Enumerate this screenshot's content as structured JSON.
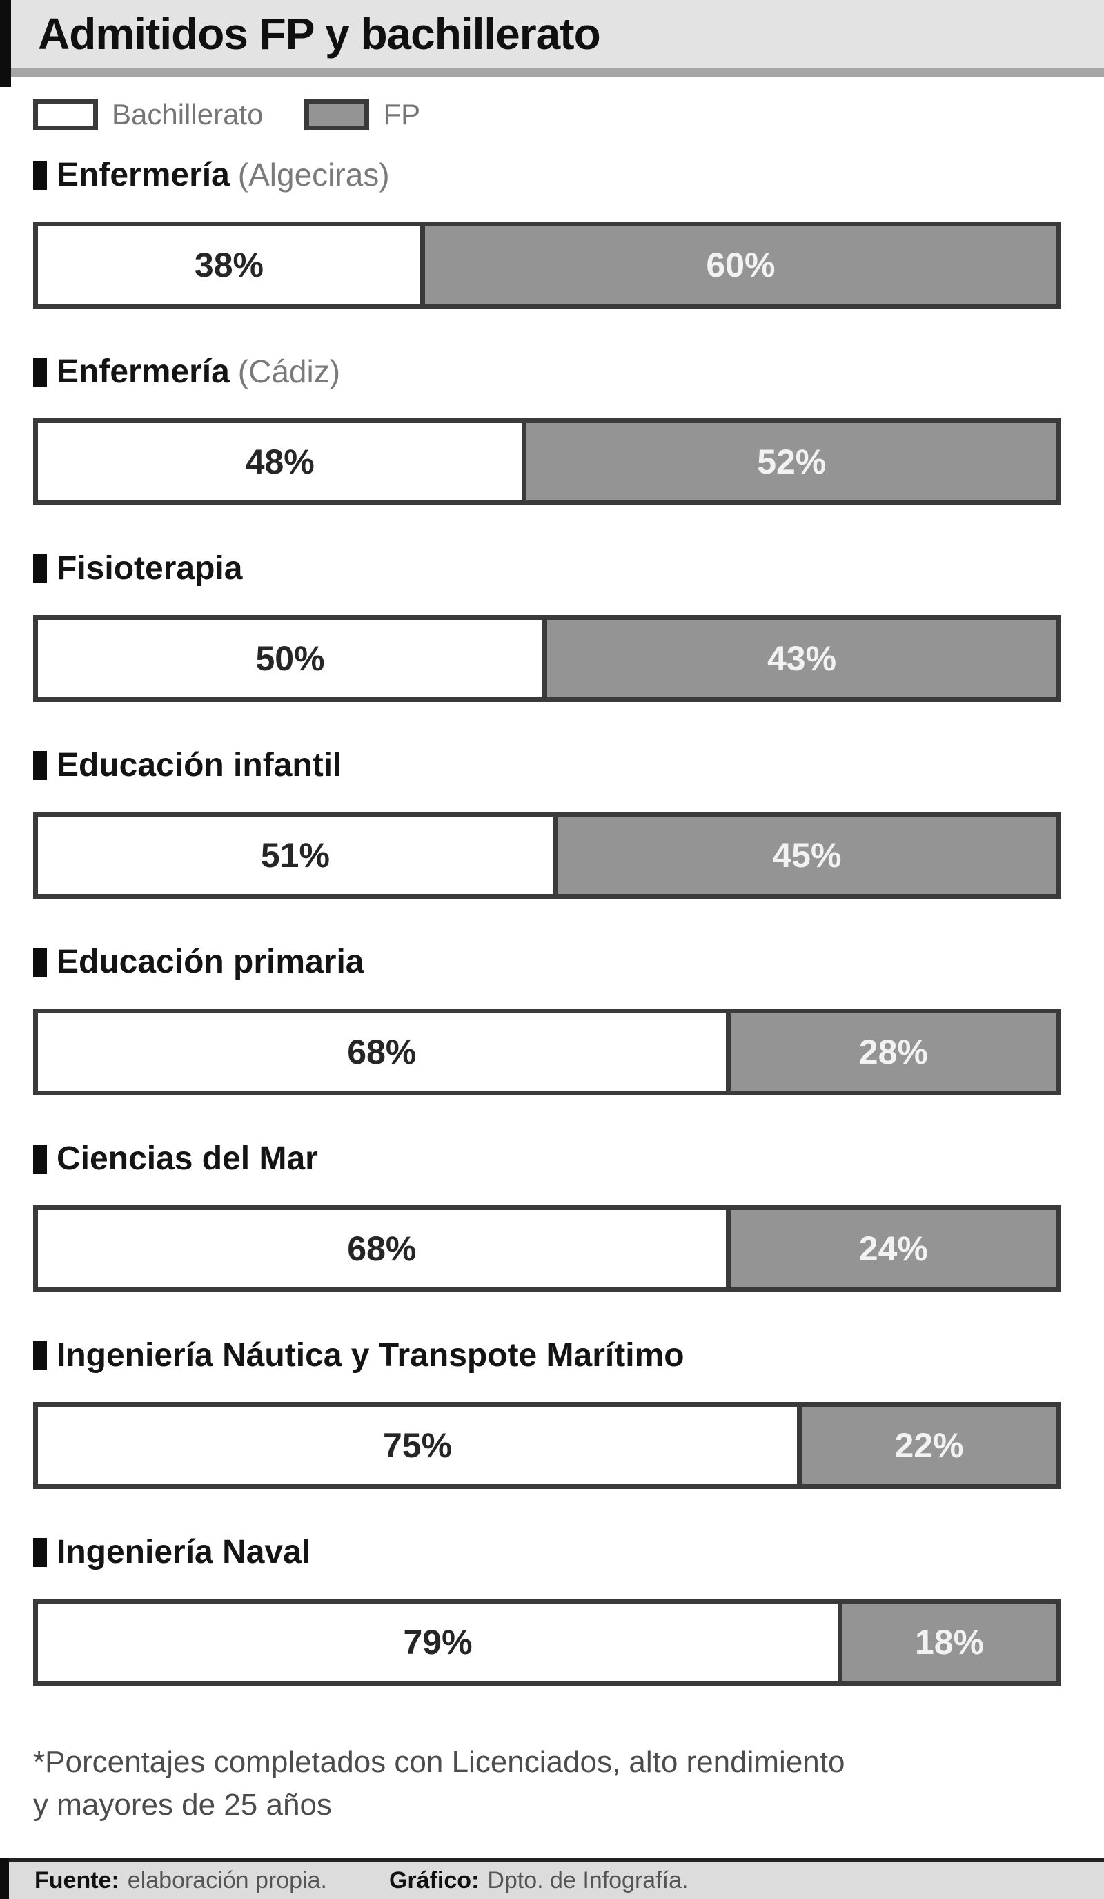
{
  "header": {
    "title": "Admitidos FP y bachillerato"
  },
  "legend": {
    "bachillerato_label": "Bachillerato",
    "fp_label": "FP"
  },
  "colors": {
    "fp_fill": "#949494",
    "bachillerato_fill": "#ffffff",
    "bar_border": "#3a3a3a",
    "header_bg": "#e3e3e3",
    "footer_bg": "#dcdcdc",
    "accent": "#0d0d0d"
  },
  "chart_data": {
    "type": "bar",
    "orientation": "horizontal",
    "stacked": true,
    "title": "Admitidos FP y bachillerato",
    "categories": [
      "Enfermería (Algeciras)",
      "Enfermería (Cádiz)",
      "Fisioterapia",
      "Educación infantil",
      "Educación primaria",
      "Ciencias del Mar",
      "Ingeniería Náutica y Transpote Marítimo",
      "Ingeniería Naval"
    ],
    "series": [
      {
        "name": "Bachillerato",
        "color": "#ffffff",
        "unit": "%",
        "values": [
          38,
          48,
          50,
          51,
          68,
          68,
          75,
          79
        ]
      },
      {
        "name": "FP",
        "color": "#949494",
        "unit": "%",
        "values": [
          60,
          52,
          43,
          45,
          28,
          24,
          22,
          18
        ]
      }
    ],
    "value_labels": "inside segments",
    "legend_position": "top-left",
    "note": "*Porcentajes completados con Licenciados, alto rendimiento y mayores de 25 años"
  },
  "rows": [
    {
      "name": "Enfermería",
      "detail": "(Algeciras)",
      "bach": 38,
      "bach_label": "38%",
      "fp_label": "60%"
    },
    {
      "name": "Enfermería",
      "detail": "(Cádiz)",
      "bach": 48,
      "bach_label": "48%",
      "fp_label": "52%"
    },
    {
      "name": "Fisioterapia",
      "detail": "",
      "bach": 50,
      "bach_label": "50%",
      "fp_label": "43%"
    },
    {
      "name": "Educación infantil",
      "detail": "",
      "bach": 51,
      "bach_label": "51%",
      "fp_label": "45%"
    },
    {
      "name": "Educación primaria",
      "detail": "",
      "bach": 68,
      "bach_label": "68%",
      "fp_label": "28%"
    },
    {
      "name": "Ciencias del Mar",
      "detail": "",
      "bach": 68,
      "bach_label": "68%",
      "fp_label": "24%"
    },
    {
      "name": "Ingeniería Náutica y Transpote Marítimo",
      "detail": "",
      "bach": 75,
      "bach_label": "75%",
      "fp_label": "22%"
    },
    {
      "name": "Ingeniería Naval",
      "detail": "",
      "bach": 79,
      "bach_label": "79%",
      "fp_label": "18%"
    }
  ],
  "footnote": {
    "line1": "*Porcentajes completados con Licenciados, alto rendimiento",
    "line2": "y mayores de 25 años"
  },
  "footer": {
    "source_label": "Fuente:",
    "source_value": "elaboración propia.",
    "credit_label": "Gráfico:",
    "credit_value": "Dpto. de Infografía."
  }
}
